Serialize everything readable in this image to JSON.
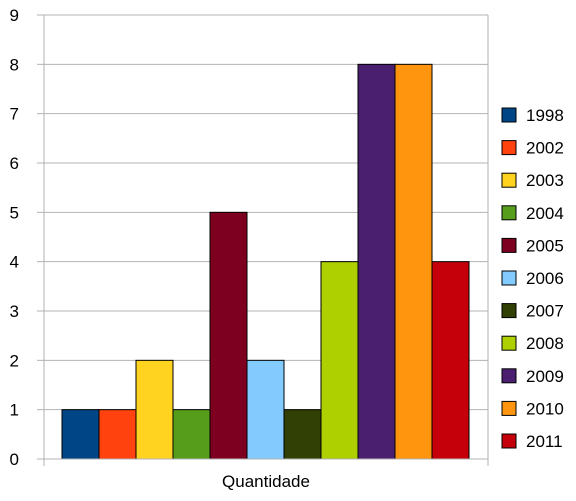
{
  "chart_data": {
    "type": "bar",
    "categories": [
      "Quantidade"
    ],
    "series": [
      {
        "name": "1998",
        "values": [
          1
        ],
        "color": "#004586"
      },
      {
        "name": "2002",
        "values": [
          1
        ],
        "color": "#ff420e"
      },
      {
        "name": "2003",
        "values": [
          2
        ],
        "color": "#ffd320"
      },
      {
        "name": "2004",
        "values": [
          1
        ],
        "color": "#579d1c"
      },
      {
        "name": "2005",
        "values": [
          5
        ],
        "color": "#7e0021"
      },
      {
        "name": "2006",
        "values": [
          2
        ],
        "color": "#83caff"
      },
      {
        "name": "2007",
        "values": [
          1
        ],
        "color": "#314004"
      },
      {
        "name": "2008",
        "values": [
          4
        ],
        "color": "#aecf00"
      },
      {
        "name": "2009",
        "values": [
          8
        ],
        "color": "#4b1f6f"
      },
      {
        "name": "2010",
        "values": [
          8
        ],
        "color": "#ff950e"
      },
      {
        "name": "2011",
        "values": [
          4
        ],
        "color": "#c5000b"
      }
    ],
    "yticks": [
      "0",
      "1",
      "2",
      "3",
      "4",
      "5",
      "6",
      "7",
      "8",
      "9"
    ],
    "ylim": [
      0,
      9
    ],
    "xlabel": "",
    "ylabel": "",
    "title": "",
    "grid": "horizontal",
    "legend": "right"
  }
}
